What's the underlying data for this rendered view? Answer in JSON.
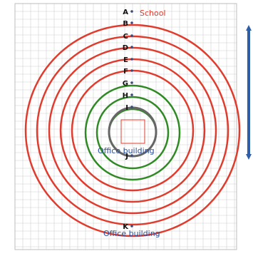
{
  "labels": {
    "school": "School",
    "office_center": "Office building",
    "office_bottom": "Office building"
  },
  "points": [
    {
      "name": "A"
    },
    {
      "name": "B"
    },
    {
      "name": "C"
    },
    {
      "name": "D"
    },
    {
      "name": "E"
    },
    {
      "name": "F"
    },
    {
      "name": "G"
    },
    {
      "name": "H"
    },
    {
      "name": "I"
    },
    {
      "name": "J"
    },
    {
      "name": "K"
    }
  ],
  "colors": {
    "red": "#e03c2e",
    "green": "#2f8a23",
    "gray": "#666666",
    "point": "#3a4a7a",
    "text_blue": "#2a4fa0",
    "grid": "#d0d0d0",
    "arrow": "#2f5ea8"
  }
}
